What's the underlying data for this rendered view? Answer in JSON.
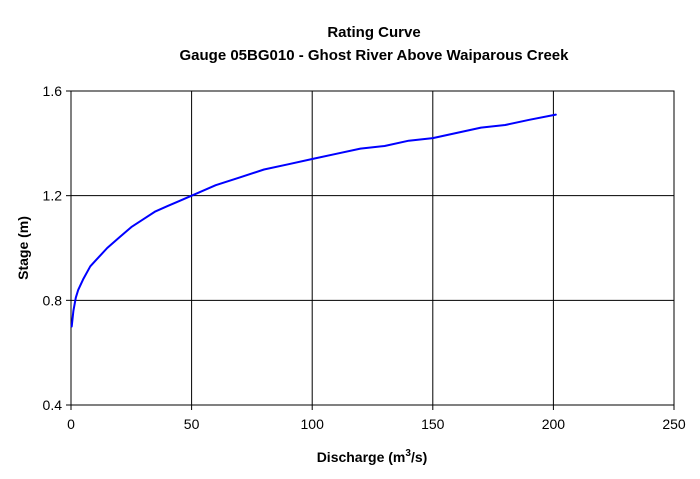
{
  "chart_data": {
    "type": "line",
    "title": "Rating Curve",
    "subtitle": "Gauge 05BG010 - Ghost River Above Waiparous Creek",
    "xlabel": "Discharge (m3/s)",
    "xlabel_parts": {
      "base": "Discharge (m",
      "sup": "3",
      "tail": "/s)"
    },
    "ylabel": "Stage (m)",
    "xlim": [
      0,
      250
    ],
    "ylim": [
      0.4,
      1.6
    ],
    "x_ticks": [
      0,
      50,
      100,
      150,
      200,
      250
    ],
    "y_ticks": [
      0.4,
      0.8,
      1.2,
      1.6
    ],
    "x_tick_labels": [
      "0",
      "50",
      "100",
      "150",
      "200",
      "250"
    ],
    "y_tick_labels": [
      "0.4",
      "0.8",
      "1.2",
      "1.6"
    ],
    "grid": true,
    "line_color": "#0000ff",
    "series": [
      {
        "x": [
          0.3,
          1,
          2,
          3,
          5,
          8,
          10,
          15,
          20,
          25,
          30,
          35,
          40,
          45,
          50,
          60,
          70,
          80,
          90,
          100,
          110,
          120,
          130,
          140,
          150,
          160,
          170,
          180,
          190,
          201
        ],
        "y": [
          0.7,
          0.76,
          0.81,
          0.84,
          0.88,
          0.93,
          0.95,
          1.0,
          1.04,
          1.08,
          1.11,
          1.14,
          1.16,
          1.18,
          1.2,
          1.24,
          1.27,
          1.3,
          1.32,
          1.34,
          1.36,
          1.38,
          1.39,
          1.41,
          1.42,
          1.44,
          1.46,
          1.47,
          1.49,
          1.51
        ]
      }
    ]
  }
}
